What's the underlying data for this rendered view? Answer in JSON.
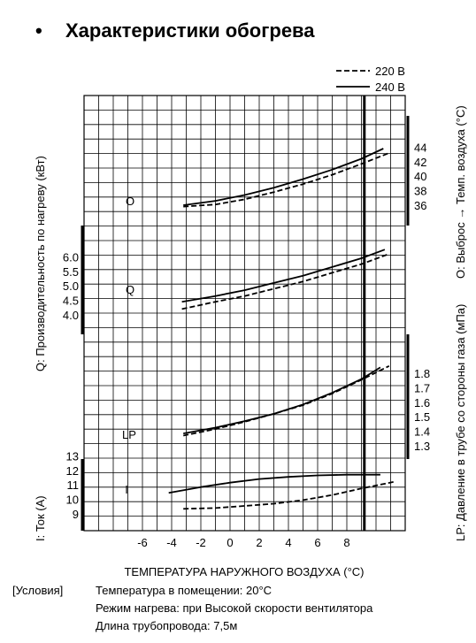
{
  "title": "Характеристики обогрева",
  "bullet": "•",
  "legend": [
    {
      "label": "220 В",
      "style": "dashed"
    },
    {
      "label": "240 В",
      "style": "solid"
    }
  ],
  "axis_labels": {
    "x": "ТЕМПЕРАТУРА НАРУЖНОГО ВОЗДУХА (°C)",
    "left_q": "Q:   Производительность по нагреву (кВт)",
    "left_i": "I:   Ток (A)",
    "right_o": "O: Выброс → Темп. воздуха (°C)",
    "right_lp": "LP:  Давление в трубе со стороны газа (мПа)"
  },
  "conditions": {
    "label": "[Условия]",
    "lines": [
      "Температура в помещении: 20°С",
      "Режим нагрева: при Высокой скорости вентилятора",
      "Длина трубопровода: 7,5м"
    ]
  },
  "chart_data": {
    "type": "line",
    "x_ticks": [
      "-6",
      "-4",
      "-2",
      "0",
      "2",
      "4",
      "6",
      "8"
    ],
    "xlim": [
      -10,
      11
    ],
    "marker_x": 9.2,
    "panels": [
      {
        "name": "O",
        "axis": "right",
        "ticks": [
          "36",
          "38",
          "40",
          "42",
          "44"
        ],
        "ylim": [
          36,
          44
        ],
        "series": [
          {
            "name": "240 В",
            "x": [
              -3.2,
              -1,
              1,
              3,
              5,
              7,
              9,
              10.5
            ],
            "y": [
              36.0,
              36.6,
              37.4,
              38.4,
              39.6,
              40.9,
              42.4,
              43.8
            ]
          },
          {
            "name": "220 В",
            "x": [
              -3.2,
              -1,
              1,
              3,
              5,
              7,
              9,
              10.9
            ],
            "y": [
              35.8,
              36.1,
              36.8,
              37.8,
              38.9,
              40.2,
              41.7,
              43.2
            ]
          }
        ]
      },
      {
        "name": "Q",
        "axis": "left",
        "ticks": [
          "4.0",
          "4.5",
          "5.0",
          "5.5",
          "6.0"
        ],
        "ylim": [
          4.0,
          6.0
        ],
        "series": [
          {
            "name": "240 В",
            "x": [
              -3.3,
              -1,
              1,
              3,
              5,
              7,
              9,
              10.6
            ],
            "y": [
              4.45,
              4.65,
              4.85,
              5.1,
              5.35,
              5.65,
              5.95,
              6.25
            ]
          },
          {
            "name": "220 В",
            "x": [
              -3.3,
              -1,
              1,
              3,
              5,
              7,
              9,
              10.9
            ],
            "y": [
              4.2,
              4.45,
              4.65,
              4.9,
              5.15,
              5.45,
              5.75,
              6.1
            ]
          }
        ]
      },
      {
        "name": "LP",
        "axis": "right",
        "ticks": [
          "1.3",
          "1.4",
          "1.5",
          "1.6",
          "1.7",
          "1.8"
        ],
        "ylim": [
          1.3,
          1.8
        ],
        "series": [
          {
            "name": "240 В",
            "x": [
              -3.2,
              -1,
              1,
              3,
              5,
              7,
              9,
              10.3
            ],
            "y": [
              1.385,
              1.425,
              1.47,
              1.52,
              1.585,
              1.665,
              1.76,
              1.84
            ]
          },
          {
            "name": "220 В",
            "x": [
              -3.2,
              -1,
              1,
              3,
              5,
              7,
              9,
              10.9
            ],
            "y": [
              1.37,
              1.415,
              1.465,
              1.52,
              1.58,
              1.66,
              1.755,
              1.85
            ]
          }
        ]
      },
      {
        "name": "I",
        "axis": "left",
        "ticks": [
          "9",
          "10",
          "11",
          "12",
          "13"
        ],
        "ylim": [
          9,
          13
        ],
        "series": [
          {
            "name": "240 В",
            "x": [
              -4.2,
              -2,
              0,
              2,
              4,
              6,
              8,
              10.3
            ],
            "y": [
              10.45,
              10.85,
              11.15,
              11.4,
              11.55,
              11.65,
              11.7,
              11.7
            ]
          },
          {
            "name": "220 В",
            "x": [
              -3.2,
              -1,
              1,
              3,
              5,
              7,
              9,
              11.2
            ],
            "y": [
              9.35,
              9.4,
              9.55,
              9.7,
              9.95,
              10.3,
              10.75,
              11.2
            ]
          }
        ]
      }
    ],
    "grid": true
  }
}
